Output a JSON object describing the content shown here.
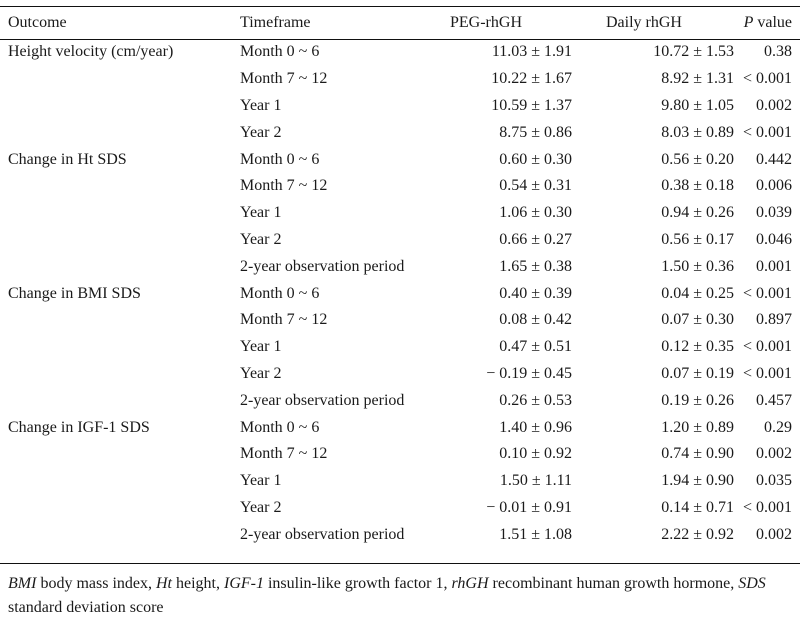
{
  "table": {
    "headers": {
      "outcome": "Outcome",
      "timeframe": "Timeframe",
      "peg": "PEG-rhGH",
      "daily": "Daily rhGH",
      "p_italic": "P",
      "p_rest": " value"
    },
    "rows": [
      {
        "outcome": "Height velocity (cm/year)",
        "timeframe": "Month 0 ~ 6",
        "peg": "11.03 ± 1.91",
        "daily": "10.72 ± 1.53",
        "p": "0.38"
      },
      {
        "outcome": "",
        "timeframe": "Month 7 ~ 12",
        "peg": "10.22 ± 1.67",
        "daily": "8.92 ± 1.31",
        "p": "< 0.001"
      },
      {
        "outcome": "",
        "timeframe": "Year 1",
        "peg": "10.59 ± 1.37",
        "daily": "9.80 ± 1.05",
        "p": "0.002"
      },
      {
        "outcome": "",
        "timeframe": "Year 2",
        "peg": "8.75 ± 0.86",
        "daily": "8.03 ± 0.89",
        "p": "< 0.001"
      },
      {
        "outcome": "Change in Ht SDS",
        "timeframe": "Month 0 ~ 6",
        "peg": "0.60 ± 0.30",
        "daily": "0.56 ± 0.20",
        "p": "0.442"
      },
      {
        "outcome": "",
        "timeframe": "Month 7 ~ 12",
        "peg": "0.54 ± 0.31",
        "daily": "0.38 ± 0.18",
        "p": "0.006"
      },
      {
        "outcome": "",
        "timeframe": "Year 1",
        "peg": "1.06 ± 0.30",
        "daily": "0.94 ± 0.26",
        "p": "0.039"
      },
      {
        "outcome": "",
        "timeframe": "Year 2",
        "peg": "0.66 ± 0.27",
        "daily": "0.56 ± 0.17",
        "p": "0.046"
      },
      {
        "outcome": "",
        "timeframe": "2-year observation period",
        "peg": "1.65 ± 0.38",
        "daily": "1.50 ± 0.36",
        "p": "0.001"
      },
      {
        "outcome": "Change in BMI SDS",
        "timeframe": "Month 0 ~ 6",
        "peg": "0.40 ± 0.39",
        "daily": "0.04 ± 0.25",
        "p": "< 0.001"
      },
      {
        "outcome": "",
        "timeframe": "Month 7 ~ 12",
        "peg": "0.08 ± 0.42",
        "daily": "0.07 ± 0.30",
        "p": "0.897"
      },
      {
        "outcome": "",
        "timeframe": "Year 1",
        "peg": "0.47 ± 0.51",
        "daily": "0.12 ± 0.35",
        "p": "< 0.001"
      },
      {
        "outcome": "",
        "timeframe": "Year 2",
        "peg": "− 0.19 ± 0.45",
        "daily": "0.07 ± 0.19",
        "p": "< 0.001"
      },
      {
        "outcome": "",
        "timeframe": "2-year observation period",
        "peg": "0.26 ± 0.53",
        "daily": "0.19 ± 0.26",
        "p": "0.457"
      },
      {
        "outcome": "Change in IGF-1 SDS",
        "timeframe": "Month 0 ~ 6",
        "peg": "1.40 ± 0.96",
        "daily": "1.20 ± 0.89",
        "p": "0.29"
      },
      {
        "outcome": "",
        "timeframe": "Month 7 ~ 12",
        "peg": "0.10 ± 0.92",
        "daily": "0.74 ± 0.90",
        "p": "0.002"
      },
      {
        "outcome": "",
        "timeframe": "Year 1",
        "peg": "1.50 ± 1.11",
        "daily": "1.94 ± 0.90",
        "p": "0.035"
      },
      {
        "outcome": "",
        "timeframe": "Year 2",
        "peg": "− 0.01 ± 0.91",
        "daily": "0.14 ± 0.71",
        "p": "< 0.001"
      },
      {
        "outcome": "",
        "timeframe": "2-year observation period",
        "peg": "1.51 ± 1.08",
        "daily": "2.22 ± 0.92",
        "p": "0.002"
      }
    ]
  },
  "footnote": {
    "items": [
      {
        "abbr": "BMI",
        "def": " body mass index, "
      },
      {
        "abbr": "Ht",
        "def": " height, "
      },
      {
        "abbr": "IGF-1",
        "def": " insulin-like growth factor 1, "
      },
      {
        "abbr": "rhGH",
        "def": " recombinant human growth hormone, "
      },
      {
        "abbr": "SDS",
        "def": " standard deviation score"
      }
    ]
  }
}
